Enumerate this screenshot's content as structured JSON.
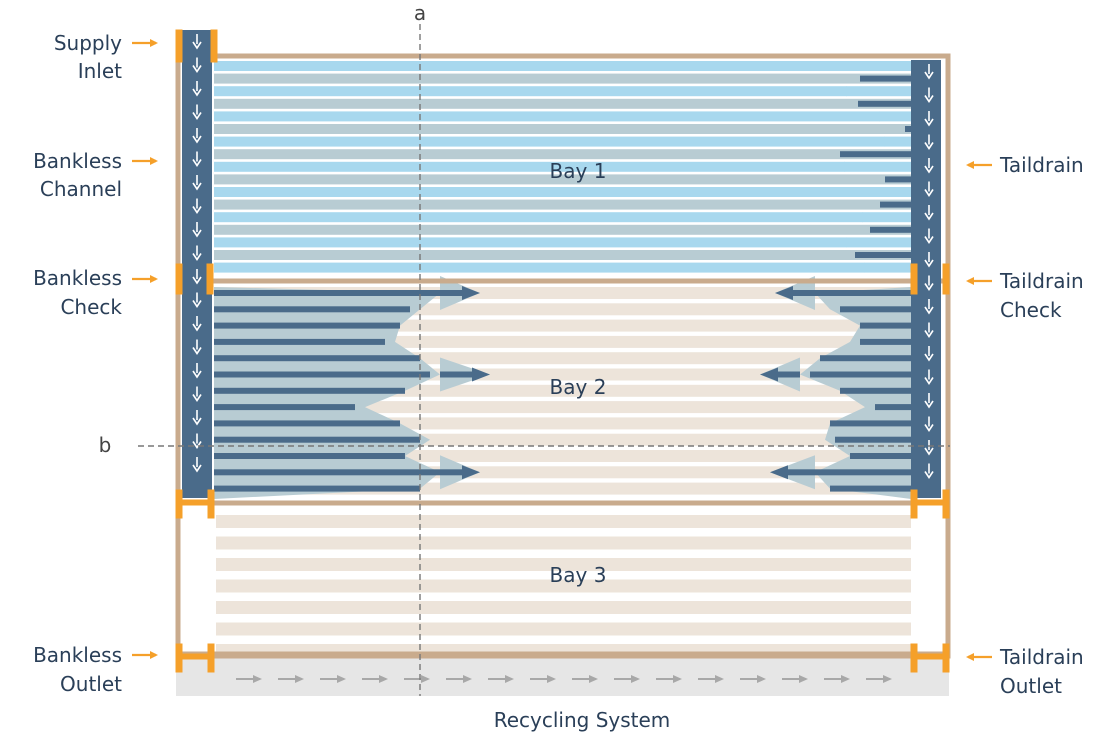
{
  "title": "",
  "colors": {
    "frame": "#c9ab8d",
    "channel": "#4a6b8a",
    "channel_arrow": "#ffffff",
    "water_light": "#a8d8ee",
    "water_wet": "#b8ccd3",
    "soil": "#ede4da",
    "check": "#f5a02a",
    "recycle_bg": "#e6e6e6",
    "recycle_arrow": "#a8a8a8",
    "label": "#2a3f58",
    "label_arrow": "#f5a02a"
  },
  "bays": [
    {
      "label": "Bay 1",
      "state": "flooded"
    },
    {
      "label": "Bay 2",
      "state": "filling"
    },
    {
      "label": "Bay 3",
      "state": "dry"
    }
  ],
  "labels": {
    "supply_inlet": [
      "Supply",
      "Inlet"
    ],
    "bankless_channel": [
      "Bankless",
      "Channel"
    ],
    "bankless_check": [
      "Bankless",
      "Check"
    ],
    "bankless_outlet": [
      "Bankless",
      "Outlet"
    ],
    "taildrain": [
      "Taildrain"
    ],
    "taildrain_check": [
      "Taildrain",
      "Check"
    ],
    "taildrain_outlet": [
      "Taildrain",
      "Outlet"
    ],
    "recycling_system": "Recycling System"
  },
  "section_lines": {
    "a": "a",
    "b": "b"
  }
}
